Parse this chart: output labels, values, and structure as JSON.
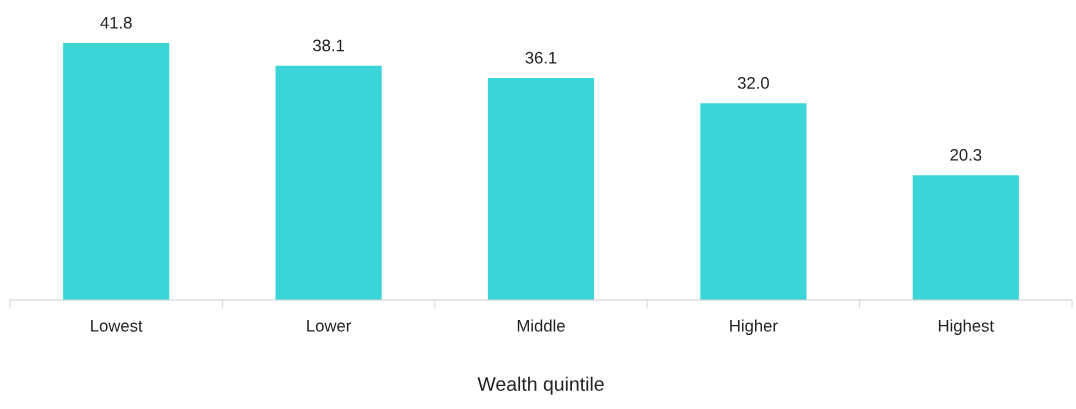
{
  "chart_data": {
    "type": "bar",
    "xlabel": "Wealth quintile",
    "categories": [
      "Lowest",
      "Lower",
      "Middle",
      "Higher",
      "Highest"
    ],
    "values": [
      41.8,
      38.1,
      36.1,
      32.0,
      20.3
    ],
    "value_labels": [
      "41.8",
      "38.1",
      "36.1",
      "32.0",
      "20.3"
    ],
    "color": "#3bd5d7",
    "tick_labels": "x",
    "grid": false,
    "legend": false
  }
}
